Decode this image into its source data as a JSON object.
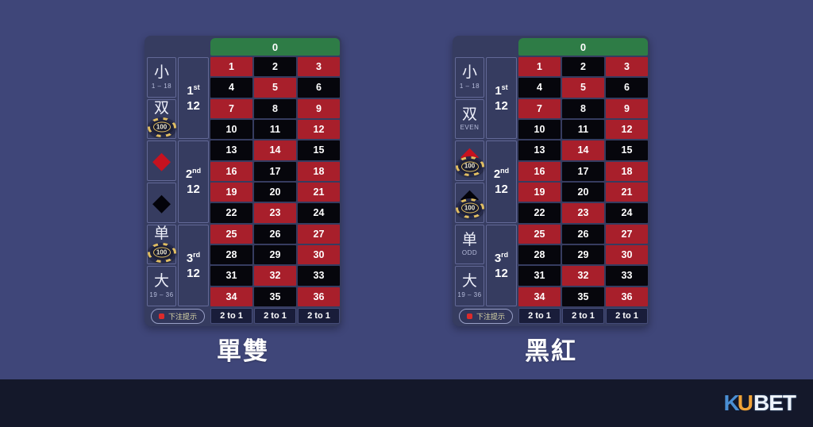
{
  "page": {
    "background_color": "#3f4679",
    "footer_color": "#14182a"
  },
  "roulette": {
    "zero_label": "0",
    "two_to_one_label": "2 to 1",
    "hint_button_label": "下注提示",
    "chip_value": "100",
    "icons": {
      "diamond_glyph": "◆"
    },
    "colors": {
      "red_cell": "#a81f2b",
      "black_cell": "#06060c",
      "green_cell": "#2e7c46",
      "panel": "#363c60",
      "diamond_red": "#c6121f",
      "diamond_black": "#03030a"
    },
    "dozens": [
      {
        "ordinal": "1",
        "suffix": "st",
        "twelve": "12"
      },
      {
        "ordinal": "2",
        "suffix": "nd",
        "twelve": "12"
      },
      {
        "ordinal": "3",
        "suffix": "rd",
        "twelve": "12"
      }
    ],
    "number_rows": [
      [
        "1",
        "2",
        "3"
      ],
      [
        "4",
        "5",
        "6"
      ],
      [
        "7",
        "8",
        "9"
      ],
      [
        "10",
        "11",
        "12"
      ],
      [
        "13",
        "14",
        "15"
      ],
      [
        "16",
        "17",
        "18"
      ],
      [
        "19",
        "20",
        "21"
      ],
      [
        "22",
        "23",
        "24"
      ],
      [
        "25",
        "26",
        "27"
      ],
      [
        "28",
        "29",
        "30"
      ],
      [
        "31",
        "32",
        "33"
      ],
      [
        "34",
        "35",
        "36"
      ]
    ],
    "red_numbers": [
      1,
      3,
      5,
      7,
      9,
      12,
      14,
      16,
      18,
      19,
      21,
      23,
      25,
      27,
      30,
      32,
      34,
      36
    ]
  },
  "tables": [
    {
      "caption": "單雙",
      "side_cells": [
        {
          "kind": "text",
          "main": "小",
          "sub": "1 – 18",
          "chip": false
        },
        {
          "kind": "text",
          "main": "双",
          "sub": "",
          "chip": true
        },
        {
          "kind": "icon",
          "icon": "red-diamond",
          "chip": false
        },
        {
          "kind": "icon",
          "icon": "black-diamond",
          "chip": false
        },
        {
          "kind": "text",
          "main": "单",
          "sub": "",
          "chip": true
        },
        {
          "kind": "text",
          "main": "大",
          "sub": "19 – 36",
          "chip": false
        }
      ]
    },
    {
      "caption": "黑紅",
      "side_cells": [
        {
          "kind": "text",
          "main": "小",
          "sub": "1 – 18",
          "chip": false
        },
        {
          "kind": "text",
          "main": "双",
          "sub": "EVEN",
          "chip": false
        },
        {
          "kind": "icon",
          "icon": "red-diamond",
          "chip": true
        },
        {
          "kind": "icon",
          "icon": "black-diamond",
          "chip": true
        },
        {
          "kind": "text",
          "main": "单",
          "sub": "ODD",
          "chip": false
        },
        {
          "kind": "text",
          "main": "大",
          "sub": "19 – 36",
          "chip": false
        }
      ]
    }
  ],
  "footer": {
    "logo": {
      "k": "K",
      "u": "U",
      "bet": "BET"
    },
    "logo_colors": {
      "k": "#4a8fd4",
      "u": "#f0a237",
      "bet": "#edf3fb"
    }
  }
}
